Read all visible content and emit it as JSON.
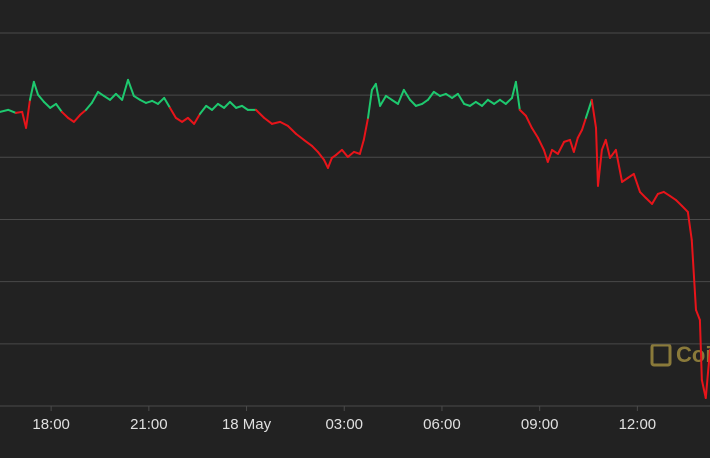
{
  "chart_data": {
    "type": "line",
    "watermark": "CoinDesk",
    "up_color": "#1ec96f",
    "down_color": "#e8141a",
    "grid": true,
    "xlim": [
      16.43,
      38.23
    ],
    "xticks": [
      {
        "value": 18,
        "label": "18:00"
      },
      {
        "value": 21,
        "label": "21:00"
      },
      {
        "value": 24,
        "label": "18 May"
      },
      {
        "value": 27,
        "label": "03:00"
      },
      {
        "value": 30,
        "label": "06:00"
      },
      {
        "value": 33,
        "label": "09:00"
      },
      {
        "value": 36,
        "label": "12:00"
      }
    ],
    "ylim": [
      0,
      65.3
    ],
    "yticks": [
      0,
      10,
      20,
      30,
      40,
      50,
      60
    ],
    "x": [
      16.43,
      16.68,
      16.92,
      17.11,
      17.23,
      17.35,
      17.47,
      17.6,
      17.78,
      17.97,
      18.15,
      18.33,
      18.52,
      18.7,
      18.89,
      19.07,
      19.25,
      19.44,
      19.62,
      19.81,
      19.99,
      20.18,
      20.36,
      20.54,
      20.73,
      20.91,
      21.1,
      21.28,
      21.47,
      21.65,
      21.83,
      22.02,
      22.2,
      22.39,
      22.57,
      22.76,
      22.94,
      23.12,
      23.31,
      23.49,
      23.68,
      23.86,
      24.04,
      24.29,
      24.54,
      24.78,
      25.03,
      25.27,
      25.52,
      25.76,
      26.01,
      26.19,
      26.38,
      26.5,
      26.62,
      26.75,
      26.93,
      27.11,
      27.3,
      27.48,
      27.6,
      27.73,
      27.85,
      27.97,
      28.1,
      28.28,
      28.46,
      28.65,
      28.83,
      29.02,
      29.2,
      29.39,
      29.57,
      29.75,
      29.94,
      30.12,
      30.31,
      30.49,
      30.68,
      30.86,
      31.04,
      31.23,
      31.41,
      31.6,
      31.78,
      31.96,
      32.15,
      32.27,
      32.39,
      32.58,
      32.76,
      32.95,
      33.13,
      33.25,
      33.38,
      33.56,
      33.75,
      33.93,
      34.05,
      34.17,
      34.3,
      34.42,
      34.54,
      34.6,
      34.73,
      34.79,
      34.91,
      35.03,
      35.16,
      35.34,
      35.53,
      35.71,
      35.89,
      36.08,
      36.26,
      36.45,
      36.63,
      36.81,
      37.0,
      37.18,
      37.37,
      37.55,
      37.67,
      37.8,
      37.92,
      37.98,
      38.1,
      38.23
    ],
    "values": [
      47.3,
      47.63,
      47.14,
      47.3,
      44.73,
      49.24,
      52.13,
      50.04,
      48.91,
      47.95,
      48.59,
      47.3,
      46.34,
      45.7,
      46.82,
      47.63,
      48.75,
      50.52,
      49.87,
      49.24,
      50.2,
      49.24,
      52.45,
      49.87,
      49.24,
      48.75,
      49.07,
      48.59,
      49.55,
      47.95,
      46.34,
      45.7,
      46.34,
      45.38,
      46.98,
      48.27,
      47.63,
      48.59,
      47.95,
      48.91,
      47.95,
      48.27,
      47.63,
      47.63,
      46.34,
      45.38,
      45.7,
      45.05,
      43.77,
      42.8,
      41.83,
      40.87,
      39.58,
      38.29,
      39.9,
      40.39,
      41.19,
      40.06,
      40.87,
      40.55,
      42.8,
      46.34,
      50.84,
      51.81,
      48.27,
      49.87,
      49.24,
      48.59,
      50.84,
      49.24,
      48.27,
      48.59,
      49.24,
      50.52,
      49.87,
      50.2,
      49.55,
      50.2,
      48.59,
      48.27,
      48.91,
      48.27,
      49.24,
      48.59,
      49.24,
      48.59,
      49.55,
      52.13,
      47.63,
      46.66,
      44.73,
      43.12,
      41.19,
      39.26,
      41.19,
      40.55,
      42.48,
      42.8,
      40.87,
      43.12,
      44.41,
      46.34,
      48.27,
      49.24,
      44.73,
      35.4,
      41.19,
      42.8,
      39.9,
      41.19,
      36.04,
      36.69,
      37.33,
      34.43,
      33.47,
      32.5,
      34.11,
      34.43,
      33.79,
      33.15,
      32.18,
      31.21,
      26.71,
      15.45,
      13.84,
      4.18,
      1.29,
      9.01
    ]
  }
}
